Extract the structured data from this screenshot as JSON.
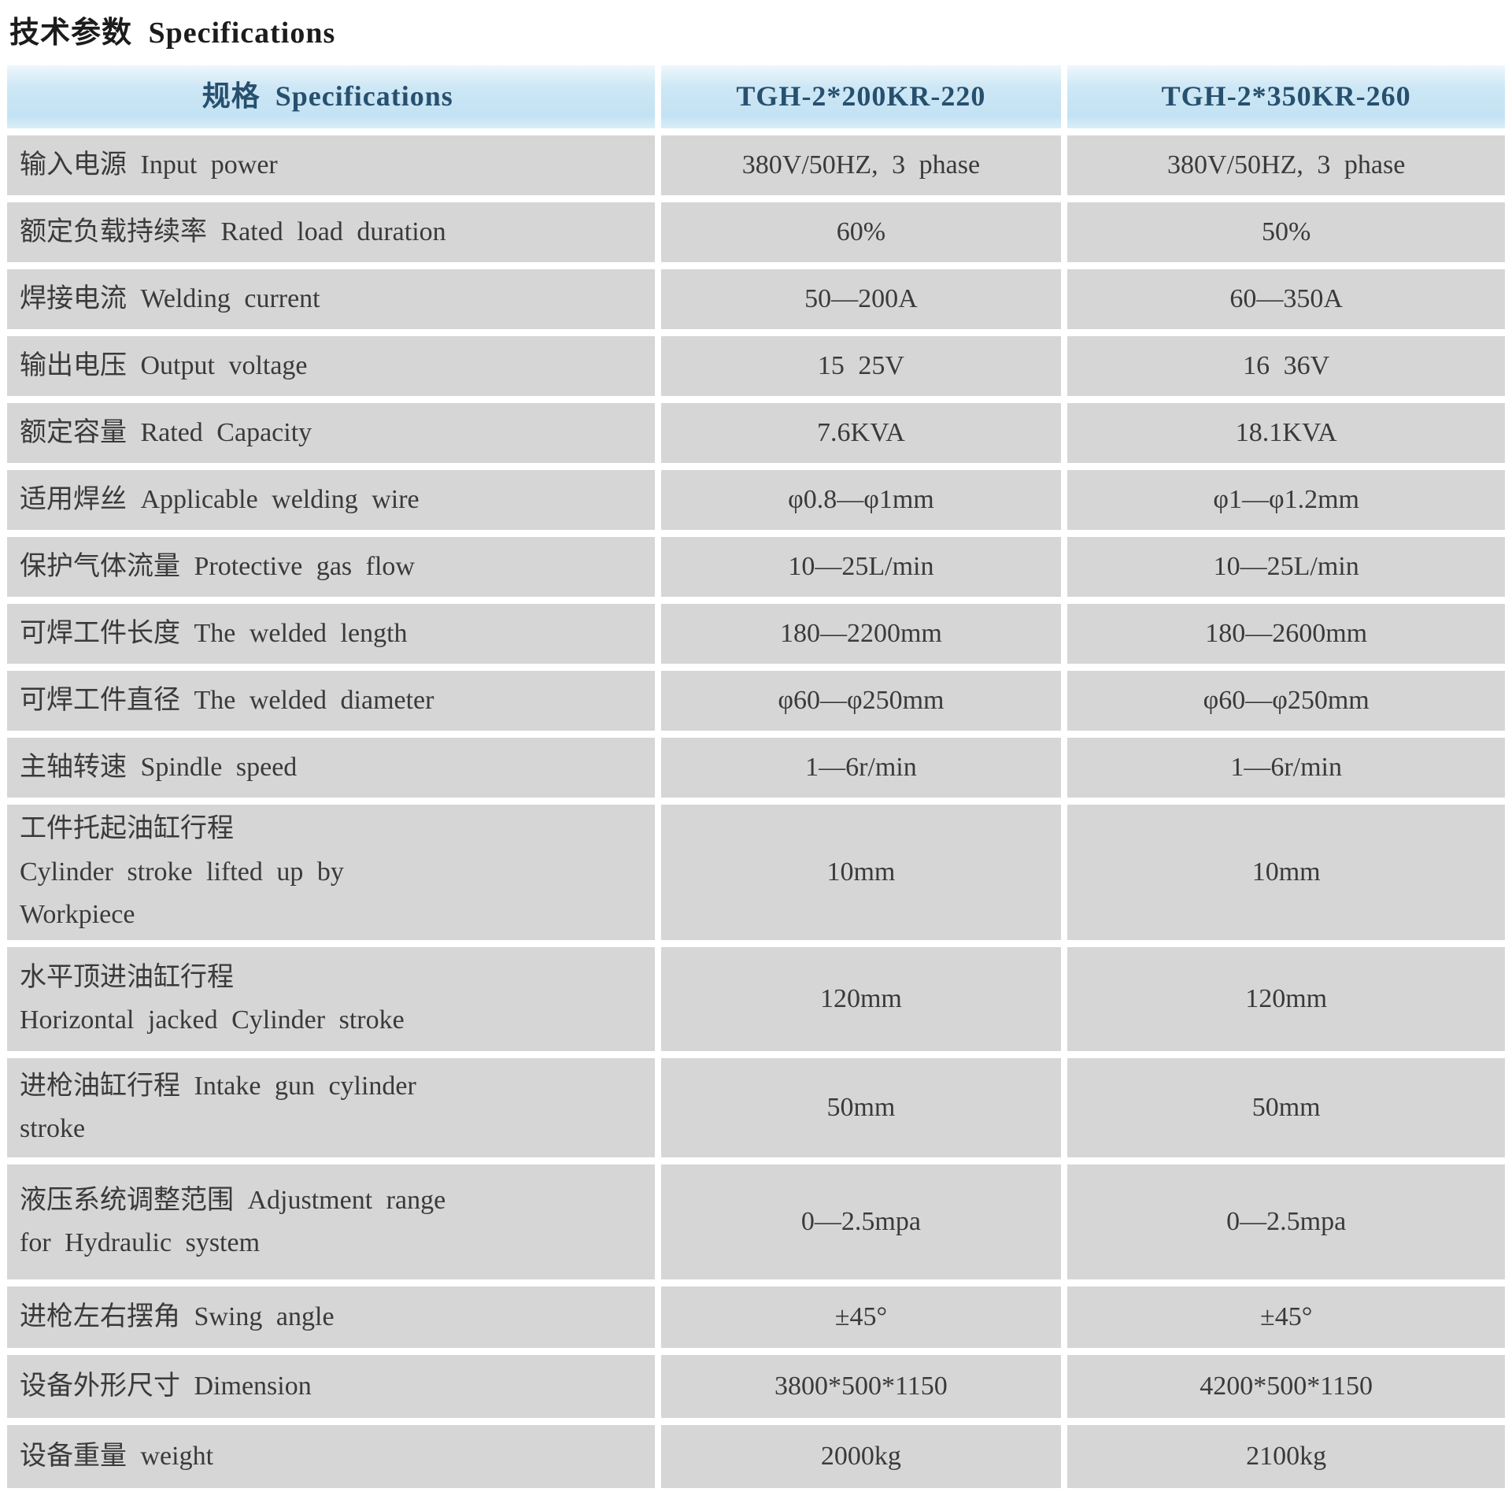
{
  "page_title": "技术参数 Specifications",
  "colors": {
    "header_bg": "#c9e4f4",
    "header_text": "#27506e",
    "row_bg": "#d6d6d6",
    "body_text": "#3a3a3a",
    "page_bg": "#ffffff"
  },
  "table": {
    "header": {
      "col1": "规格 Specifications",
      "col2": "TGH-2*200KR-220",
      "col3": "TGH-2*350KR-260"
    },
    "rows": [
      {
        "label": "输入电源 Input power",
        "v1": "380V/50HZ, 3 phase",
        "v2": "380V/50HZ, 3 phase"
      },
      {
        "label": "额定负载持续率 Rated load duration",
        "v1": "60%",
        "v2": "50%"
      },
      {
        "label": "焊接电流 Welding current",
        "v1": "50—200A",
        "v2": "60—350A"
      },
      {
        "label": "输出电压 Output voltage",
        "v1": "15 25V",
        "v2": "16 36V"
      },
      {
        "label": "额定容量 Rated Capacity",
        "v1": "7.6KVA",
        "v2": "18.1KVA"
      },
      {
        "label": "适用焊丝 Applicable welding wire",
        "v1": "φ0.8—φ1mm",
        "v2": "φ1—φ1.2mm"
      },
      {
        "label": "保护气体流量 Protective gas flow",
        "v1": "10—25L/min",
        "v2": "10—25L/min"
      },
      {
        "label": "可焊工件长度 The welded length",
        "v1": "180—2200mm",
        "v2": "180—2600mm"
      },
      {
        "label": "可焊工件直径 The welded diameter",
        "v1": "φ60—φ250mm",
        "v2": "φ60—φ250mm"
      },
      {
        "label": "主轴转速 Spindle speed",
        "v1": "1—6r/min",
        "v2": "1—6r/min"
      },
      {
        "label": "工件托起油缸行程\nCylinder stroke lifted up by\nWorkpiece",
        "v1": "10mm",
        "v2": "10mm"
      },
      {
        "label": "水平顶进油缸行程\nHorizontal jacked Cylinder stroke",
        "v1": "120mm",
        "v2": "120mm"
      },
      {
        "label": "进枪油缸行程 Intake gun cylinder\nstroke",
        "v1": "50mm",
        "v2": "50mm"
      },
      {
        "label": "液压系统调整范围 Adjustment range\nfor Hydraulic system",
        "v1": "0—2.5mpa",
        "v2": "0—2.5mpa"
      },
      {
        "label": "进枪左右摆角 Swing angle",
        "v1": "±45°",
        "v2": "±45°"
      },
      {
        "label": "设备外形尺寸 Dimension",
        "v1": "3800*500*1150",
        "v2": "4200*500*1150"
      },
      {
        "label": "设备重量 weight",
        "v1": "2000kg",
        "v2": "2100kg"
      }
    ]
  }
}
